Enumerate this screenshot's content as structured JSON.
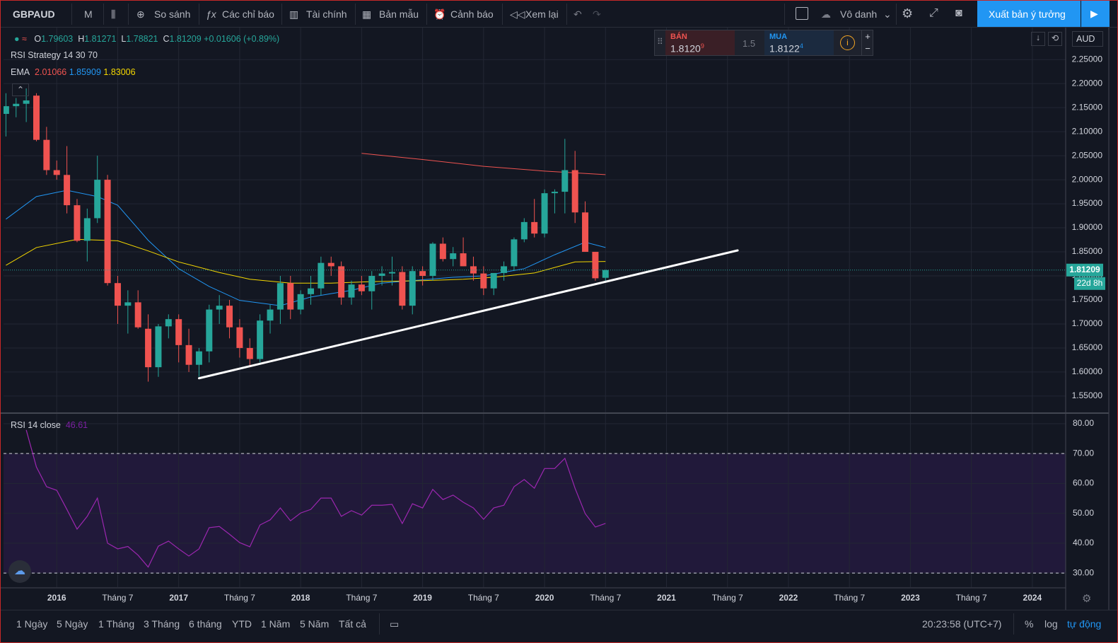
{
  "toolbar": {
    "symbol": "GBPAUD",
    "interval": "M",
    "items": [
      "So sánh",
      "Các chỉ báo",
      "Tài chính",
      "Bản mẫu",
      "Cảnh báo",
      "Xem lại"
    ],
    "account": "Vô danh",
    "publish": "Xuất bản ý tưởng"
  },
  "legend": {
    "open": "O",
    "high": "H",
    "low": "L",
    "close": "C",
    "change": "+0.01606 (+0.89%)",
    "strategy": "RSI Strategy 14 30 70",
    "ema": "EMA",
    "rsi": "RSI 14 close",
    "currency": "AUD",
    "countdown": "22d 8h"
  },
  "trade_panel": {
    "sell_label": "BÁN",
    "sell_price": "1.8120",
    "sell_sup": "9",
    "spread": "1.5",
    "buy_label": "MUA",
    "buy_price": "1.8122",
    "buy_sup": "4"
  },
  "bottom_bar": {
    "ranges": [
      "1 Ngày",
      "5 Ngày",
      "1 Tháng",
      "3 Tháng",
      "6 tháng",
      "YTD",
      "1 Năm",
      "5 Năm",
      "Tất cả"
    ],
    "time": "20:23:58 (UTC+7)",
    "percent": "%",
    "log": "log",
    "auto": "tự động"
  },
  "chart_data": [
    {
      "type": "candlestick",
      "up_color": "#26a69a",
      "down_color": "#ef5350",
      "x": [
        "2015-08",
        "2015-09",
        "2015-10",
        "2015-11",
        "2015-12",
        "2016-01",
        "2016-02",
        "2016-03",
        "2016-04",
        "2016-05",
        "2016-06",
        "2016-07",
        "2016-08",
        "2016-09",
        "2016-10",
        "2016-11",
        "2016-12",
        "2017-01",
        "2017-02",
        "2017-03",
        "2017-04",
        "2017-05",
        "2017-06",
        "2017-07",
        "2017-08",
        "2017-09",
        "2017-10",
        "2017-11",
        "2017-12",
        "2018-01",
        "2018-02",
        "2018-03",
        "2018-04",
        "2018-05",
        "2018-06",
        "2018-07",
        "2018-08",
        "2018-09",
        "2018-10",
        "2018-11",
        "2018-12",
        "2019-01",
        "2019-02",
        "2019-03",
        "2019-04",
        "2019-05",
        "2019-06",
        "2019-07",
        "2019-08",
        "2019-09",
        "2019-10",
        "2019-11",
        "2019-12",
        "2020-01",
        "2020-02",
        "2020-03",
        "2020-04",
        "2020-05",
        "2020-06",
        "2020-07"
      ],
      "open": [
        2.137,
        2.153,
        2.158,
        2.175,
        2.083,
        2.02,
        2.01,
        1.947,
        1.873,
        1.92,
        2.0,
        1.785,
        1.738,
        1.745,
        1.69,
        1.61,
        1.695,
        1.71,
        1.656,
        1.615,
        1.643,
        1.73,
        1.738,
        1.693,
        1.65,
        1.627,
        1.707,
        1.73,
        1.785,
        1.73,
        1.762,
        1.774,
        1.827,
        1.82,
        1.755,
        1.782,
        1.768,
        1.8,
        1.805,
        1.808,
        1.738,
        1.81,
        1.8,
        1.867,
        1.835,
        1.847,
        1.82,
        1.805,
        1.774,
        1.806,
        1.82,
        1.876,
        1.912,
        1.888,
        1.972,
        1.975,
        2.02,
        1.932,
        1.85,
        1.79603
      ],
      "high": [
        2.18,
        2.17,
        2.19,
        2.18,
        2.11,
        2.04,
        2.07,
        1.96,
        1.94,
        2.05,
        2.01,
        1.8,
        1.77,
        1.77,
        1.72,
        1.7,
        1.72,
        1.72,
        1.69,
        1.65,
        1.74,
        1.76,
        1.75,
        1.71,
        1.67,
        1.72,
        1.74,
        1.8,
        1.8,
        1.77,
        1.8,
        1.84,
        1.84,
        1.83,
        1.79,
        1.8,
        1.81,
        1.82,
        1.84,
        1.82,
        1.82,
        1.82,
        1.87,
        1.88,
        1.86,
        1.88,
        1.84,
        1.82,
        1.8,
        1.83,
        1.88,
        1.92,
        1.96,
        1.98,
        1.98,
        2.085,
        2.06,
        1.955,
        1.85,
        1.81271
      ],
      "low": [
        2.09,
        2.13,
        2.12,
        2.08,
        2.01,
        2.0,
        1.93,
        1.87,
        1.83,
        1.91,
        1.78,
        1.7,
        1.68,
        1.69,
        1.58,
        1.59,
        1.67,
        1.62,
        1.6,
        1.59,
        1.62,
        1.7,
        1.67,
        1.63,
        1.61,
        1.62,
        1.68,
        1.7,
        1.71,
        1.72,
        1.74,
        1.76,
        1.8,
        1.74,
        1.74,
        1.76,
        1.73,
        1.78,
        1.78,
        1.73,
        1.72,
        1.78,
        1.79,
        1.83,
        1.82,
        1.82,
        1.79,
        1.76,
        1.76,
        1.79,
        1.81,
        1.87,
        1.88,
        1.88,
        1.93,
        1.93,
        1.91,
        1.85,
        1.79,
        1.78821
      ],
      "close": [
        2.153,
        2.158,
        2.165,
        2.083,
        2.02,
        2.01,
        1.947,
        1.873,
        1.92,
        2.0,
        1.785,
        1.738,
        1.745,
        1.693,
        1.61,
        1.695,
        1.71,
        1.656,
        1.615,
        1.643,
        1.73,
        1.738,
        1.693,
        1.65,
        1.627,
        1.707,
        1.73,
        1.785,
        1.73,
        1.762,
        1.774,
        1.827,
        1.82,
        1.755,
        1.782,
        1.768,
        1.8,
        1.805,
        1.808,
        1.738,
        1.81,
        1.8,
        1.867,
        1.835,
        1.847,
        1.82,
        1.805,
        1.774,
        1.806,
        1.82,
        1.876,
        1.912,
        1.888,
        1.972,
        1.975,
        2.02,
        1.932,
        1.85,
        1.795,
        1.81209
      ],
      "series": [
        {
          "color": "#ef5350",
          "x": [
            "2018-07",
            "2019-01",
            "2019-07",
            "2020-01",
            "2020-07"
          ],
          "values": [
            2.055,
            2.042,
            2.028,
            2.018,
            2.01066
          ]
        },
        {
          "color": "#2196f3",
          "x": [
            "2015-08",
            "2015-11",
            "2016-02",
            "2016-05",
            "2016-07",
            "2016-10",
            "2017-01",
            "2017-04",
            "2017-07",
            "2017-11",
            "2018-02",
            "2018-06",
            "2018-09",
            "2019-01",
            "2019-04",
            "2019-07",
            "2019-11",
            "2020-02",
            "2020-05",
            "2020-07"
          ],
          "values": [
            1.918,
            1.965,
            1.978,
            1.965,
            1.947,
            1.874,
            1.815,
            1.778,
            1.749,
            1.738,
            1.756,
            1.77,
            1.785,
            1.792,
            1.797,
            1.8,
            1.815,
            1.844,
            1.87,
            1.85909
          ]
        },
        {
          "color": "#f5d800",
          "x": [
            "2015-08",
            "2015-11",
            "2016-03",
            "2016-07",
            "2016-10",
            "2017-01",
            "2017-05",
            "2017-08",
            "2017-12",
            "2018-04",
            "2018-08",
            "2019-01",
            "2019-05",
            "2019-08",
            "2019-12",
            "2020-04",
            "2020-07"
          ],
          "values": [
            1.822,
            1.859,
            1.876,
            1.873,
            1.852,
            1.829,
            1.807,
            1.793,
            1.785,
            1.785,
            1.788,
            1.79,
            1.793,
            1.797,
            1.806,
            1.829,
            1.83006
          ]
        }
      ],
      "trendline": {
        "x": [
          "2017-03",
          "2021-08"
        ],
        "y": [
          1.587,
          1.853
        ]
      },
      "xlim": [
        "2015-07",
        "2024-04"
      ],
      "xticks": [
        {
          "value": "2016-01",
          "label": "2016"
        },
        {
          "value": "2016-07",
          "label": "Tháng 7"
        },
        {
          "value": "2017-01",
          "label": "2017"
        },
        {
          "value": "2017-07",
          "label": "Tháng 7"
        },
        {
          "value": "2018-01",
          "label": "2018"
        },
        {
          "value": "2018-07",
          "label": "Tháng 7"
        },
        {
          "value": "2019-01",
          "label": "2019"
        },
        {
          "value": "2019-07",
          "label": "Tháng 7"
        },
        {
          "value": "2020-01",
          "label": "2020"
        },
        {
          "value": "2020-07",
          "label": "Tháng 7"
        },
        {
          "value": "2021-01",
          "label": "2021"
        },
        {
          "value": "2021-07",
          "label": "Tháng 7"
        },
        {
          "value": "2022-01",
          "label": "2022"
        },
        {
          "value": "2022-07",
          "label": "Tháng 7"
        },
        {
          "value": "2023-01",
          "label": "2023"
        },
        {
          "value": "2023-07",
          "label": "Tháng 7"
        },
        {
          "value": "2024-01",
          "label": "2024"
        }
      ],
      "ylim": [
        1.516,
        2.318
      ],
      "yticks": [
        {
          "value": 1.55,
          "label": "1.55000"
        },
        {
          "value": 1.6,
          "label": "1.60000"
        },
        {
          "value": 1.65,
          "label": "1.65000"
        },
        {
          "value": 1.7,
          "label": "1.70000"
        },
        {
          "value": 1.75,
          "label": "1.75000"
        },
        {
          "value": 1.8,
          "label": "1.80000"
        },
        {
          "value": 1.85,
          "label": "1.85000"
        },
        {
          "value": 1.9,
          "label": "1.90000"
        },
        {
          "value": 1.95,
          "label": "1.95000"
        },
        {
          "value": 2.0,
          "label": "2.00000"
        },
        {
          "value": 2.05,
          "label": "2.05000"
        },
        {
          "value": 2.1,
          "label": "2.10000"
        },
        {
          "value": 2.15,
          "label": "2.15000"
        },
        {
          "value": 2.2,
          "label": "2.20000"
        },
        {
          "value": 2.25,
          "label": "2.25000"
        }
      ],
      "grid": true
    },
    {
      "type": "line",
      "x": [
        "2015-08",
        "2015-09",
        "2015-10",
        "2015-11",
        "2015-12",
        "2016-01",
        "2016-02",
        "2016-03",
        "2016-04",
        "2016-05",
        "2016-06",
        "2016-07",
        "2016-08",
        "2016-09",
        "2016-10",
        "2016-11",
        "2016-12",
        "2017-01",
        "2017-02",
        "2017-03",
        "2017-04",
        "2017-05",
        "2017-06",
        "2017-07",
        "2017-08",
        "2017-09",
        "2017-10",
        "2017-11",
        "2017-12",
        "2018-01",
        "2018-02",
        "2018-03",
        "2018-04",
        "2018-05",
        "2018-06",
        "2018-07",
        "2018-08",
        "2018-09",
        "2018-10",
        "2018-11",
        "2018-12",
        "2019-01",
        "2019-02",
        "2019-03",
        "2019-04",
        "2019-05",
        "2019-06",
        "2019-07",
        "2019-08",
        "2019-09",
        "2019-10",
        "2019-11",
        "2019-12",
        "2020-01",
        "2020-02",
        "2020-03",
        "2020-04",
        "2020-05",
        "2020-06",
        "2020-07"
      ],
      "series": [
        {
          "color": "#9c27b0",
          "values": [
            null,
            null,
            77.9,
            65.5,
            58.9,
            57.7,
            51.3,
            44.7,
            49,
            55.1,
            40,
            38.1,
            38.9,
            36,
            32,
            39,
            40.7,
            38.1,
            35.7,
            38.1,
            45.2,
            45.6,
            43,
            40.2,
            38.8,
            46.1,
            47.8,
            51.8,
            47.5,
            50.1,
            51.3,
            55.1,
            55.1,
            49,
            50.9,
            49.4,
            52.7,
            52.7,
            53,
            46.6,
            53.2,
            51.8,
            58,
            54.6,
            56.1,
            53.7,
            51.8,
            48,
            51.8,
            52.7,
            58.9,
            61.3,
            58.4,
            65,
            65,
            68.4,
            58.4,
            49.9,
            45.4,
            46.61
          ]
        }
      ],
      "band_upper": 70,
      "band_lower": 30,
      "ylim": [
        25.3,
        83.3
      ],
      "yticks": [
        {
          "value": 30,
          "label": "30.00"
        },
        {
          "value": 40,
          "label": "40.00"
        },
        {
          "value": 50,
          "label": "50.00"
        },
        {
          "value": 60,
          "label": "60.00"
        },
        {
          "value": 70,
          "label": "70.00"
        },
        {
          "value": 80,
          "label": "80.00"
        }
      ]
    }
  ]
}
